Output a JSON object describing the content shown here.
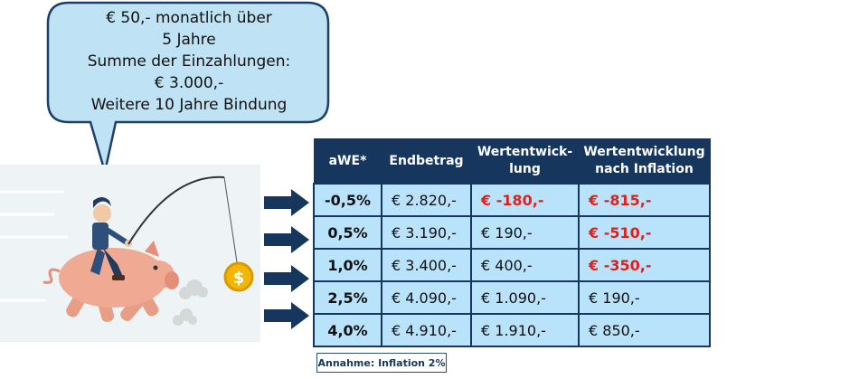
{
  "bubble": {
    "lines": [
      "€ 50,- monatlich über",
      "5 Jahre",
      "Summe der Einzahlungen:",
      "€ 3.000,-",
      "Weitere 10 Jahre Bindung"
    ]
  },
  "table": {
    "headers": [
      "aWE*",
      "Endbetrag",
      "Wertentwick-\nlung",
      "Wertentwicklung\nnach Inflation"
    ],
    "rows": [
      [
        "-0,5%",
        "€ 2.820,-",
        "€ -180,-",
        "€ -815,-"
      ],
      [
        "0,5%",
        "€ 3.190,-",
        "€ 190,-",
        "€ -510,-"
      ],
      [
        "1,0%",
        "€ 3.400,-",
        "€ 400,-",
        "€ -350,-"
      ],
      [
        "2,5%",
        "€ 4.090,-",
        "€ 1.090,-",
        "€ 190,-"
      ],
      [
        "4,0%",
        "€ 4.910,-",
        "€ 1.910,-",
        "€ 850,-"
      ]
    ],
    "negative_color": "#e0201b",
    "header_color": "#17365d",
    "cell_color": "#b9e3fb"
  },
  "assumption": "Annahme:  Inflation 2%",
  "illustration": {
    "icon": "man-riding-piggy-bank-with-coin-on-fishing-rod",
    "coin_symbol": "$"
  }
}
